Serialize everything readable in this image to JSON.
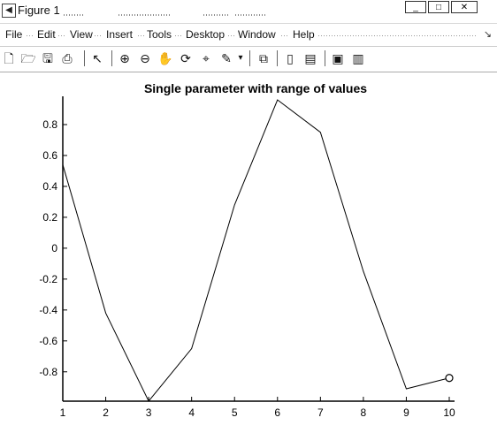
{
  "window": {
    "title": "Figure 1",
    "app_icon": "matlab-figure-icon",
    "buttons": {
      "minimize": "_",
      "maximize": "□",
      "close": "✕"
    }
  },
  "menu": {
    "items": [
      "File",
      "Edit",
      "View",
      "Insert",
      "Tools",
      "Desktop",
      "Window",
      "Help"
    ],
    "overflow_arrow": "↘"
  },
  "toolbar": {
    "icons": [
      "new-figure-icon",
      "open-file-icon",
      "save-icon",
      "print-icon",
      "select-arrow-icon",
      "zoom-in-icon",
      "zoom-out-icon",
      "pan-hand-icon",
      "rotate-3d-icon",
      "data-cursor-icon",
      "brush-icon",
      "brush-dropdown-icon",
      "link-plot-icon",
      "colorbar-icon",
      "legend-icon",
      "hide-plot-tools-icon",
      "show-plot-tools-icon"
    ]
  },
  "chart_data": {
    "type": "line",
    "title": "Single parameter  with range of values",
    "xlabel": "",
    "ylabel": "",
    "x": [
      1,
      2,
      3,
      4,
      5,
      6,
      7,
      8,
      9,
      10
    ],
    "series": [
      {
        "values": [
          0.54,
          -0.42,
          -0.99,
          -0.65,
          0.28,
          0.96,
          0.75,
          -0.15,
          -0.91,
          -0.84
        ],
        "color": "#000000",
        "end_marker": "circle"
      }
    ],
    "xlim": [
      1,
      10
    ],
    "ylim": [
      -0.99,
      0.96
    ],
    "xticks": [
      "1",
      "2",
      "3",
      "4",
      "5",
      "6",
      "7",
      "8",
      "9",
      "10"
    ],
    "yticks": [
      "0.8",
      "0.6",
      "0.4",
      "0.2",
      "0",
      "-0.2",
      "-0.4",
      "-0.6",
      "-0.8"
    ],
    "grid": false
  }
}
